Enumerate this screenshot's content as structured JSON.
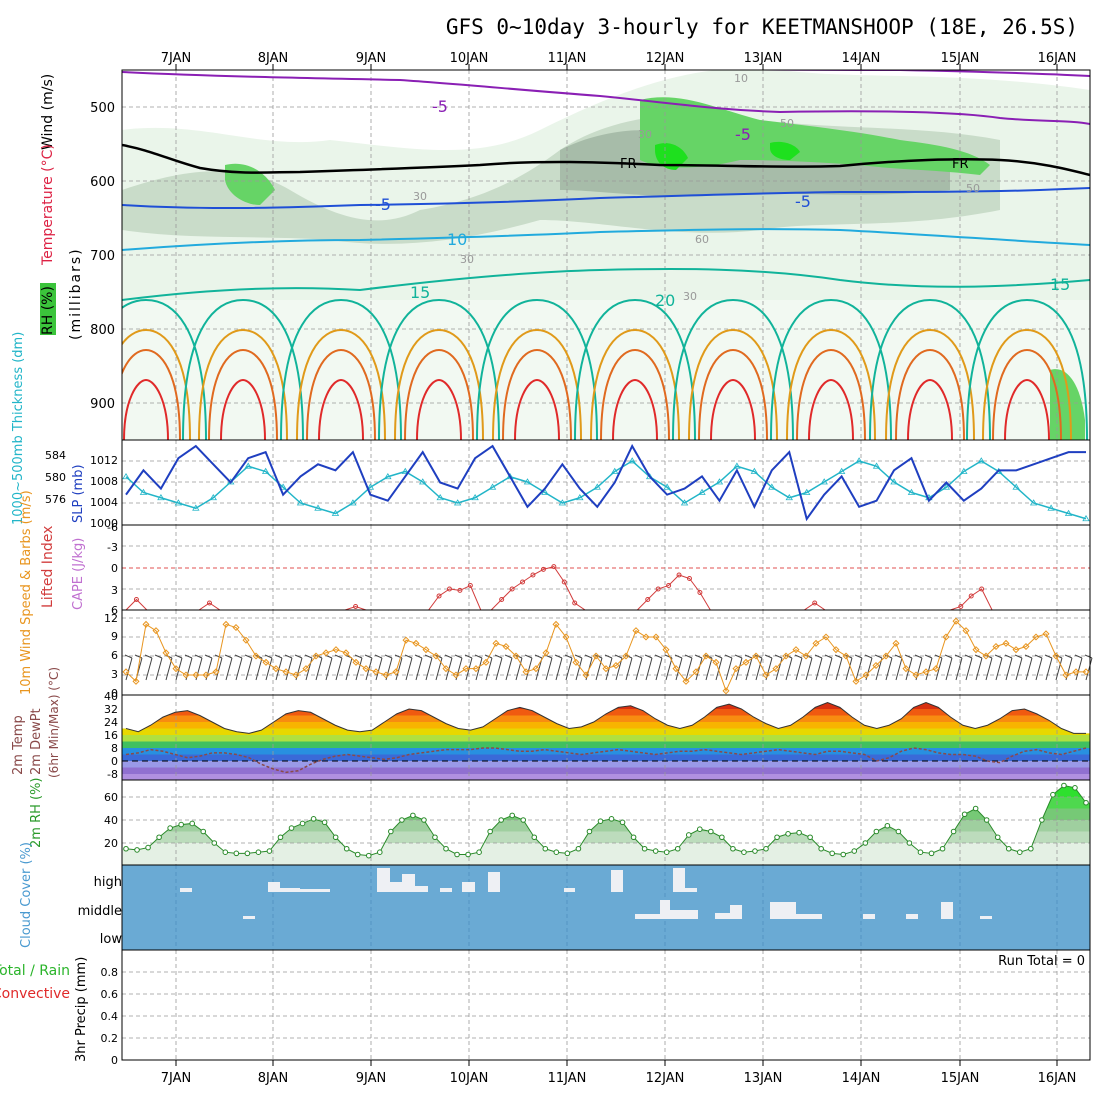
{
  "title": "GFS 0~10day 3-hourly for KEETMANSHOOP (18E, 26.5S)",
  "dates": [
    "7JAN",
    "8JAN",
    "9JAN",
    "10JAN",
    "11JAN",
    "12JAN",
    "13JAN",
    "14JAN",
    "15JAN",
    "16JAN"
  ],
  "colors": {
    "rh_green": "#2ecc40",
    "temp_blue": "#1f4fd6",
    "temp_cyan": "#22aadd",
    "teal": "#11b39a",
    "orange": "#e09a1a",
    "red": "#e02a2a",
    "purple": "#8a1fb4",
    "cloud_bg": "#6aaad4",
    "lifted": "#d23c3c",
    "cape": "#c070d0",
    "wind": "#e8951f",
    "slp": "#1f3fc0",
    "thick": "#22b5c8"
  },
  "chart_data": [
    {
      "type": "line",
      "panel": "upper-air",
      "ylabel_parts": [
        "Wind (m/s)",
        "Temperature (°C)",
        "RH (%)"
      ],
      "ylabel_axis": "(millibars)",
      "y_ticks": [
        500,
        600,
        700,
        800,
        900
      ],
      "ylim": [
        950,
        450
      ],
      "contour_labels": [
        "-5",
        "-5",
        "-5",
        "FR",
        "FR",
        "-5",
        "10",
        "15",
        "20",
        "15",
        "30",
        "30",
        "30",
        "50",
        "60",
        "10",
        "30",
        "50"
      ],
      "series": [
        {
          "name": "-5 upper",
          "values": [
            465,
            470,
            473,
            478,
            480,
            488,
            498,
            505,
            510,
            512
          ]
        },
        {
          "name": "FR",
          "values": [
            570,
            578,
            582,
            585,
            580,
            572,
            568,
            570,
            572,
            575
          ]
        },
        {
          "name": "-5",
          "values": [
            630,
            625,
            615,
            620,
            610,
            605,
            600,
            605,
            600,
            598
          ]
        },
        {
          "name": "10",
          "values": [
            700,
            690,
            688,
            680,
            676,
            670,
            660,
            664,
            668,
            675
          ]
        },
        {
          "name": "15",
          "values": [
            760,
            755,
            748,
            740,
            730,
            720,
            715,
            730,
            740,
            745
          ]
        }
      ]
    },
    {
      "type": "line",
      "panel": "slp-thickness",
      "ylabel": "SLP (mb)",
      "ylabel2": "1000~500mb Thickness (dm)",
      "slp_ticks": [
        1012,
        1008,
        1004,
        1000
      ],
      "thick_ticks": [
        584,
        580,
        576
      ],
      "ylim": [
        1000,
        1014
      ],
      "series": [
        {
          "name": "SLP",
          "values": [
            1005,
            1009,
            1006,
            1011,
            1013,
            1010,
            1007,
            1011,
            1012,
            1005,
            1008,
            1010,
            1009,
            1012,
            1005,
            1004,
            1008,
            1012,
            1007,
            1006,
            1011,
            1013,
            1008,
            1003,
            1006,
            1010,
            1006,
            1003,
            1007,
            1013,
            1008,
            1005,
            1006,
            1008,
            1004,
            1009,
            1003,
            1009,
            1012,
            1001,
            1005,
            1008,
            1003,
            1004,
            1009,
            1011,
            1004,
            1007,
            1004,
            1006,
            1009,
            1009,
            1010,
            1011,
            1012,
            1012
          ]
        },
        {
          "name": "Thickness",
          "values": [
            581,
            578,
            577,
            576,
            575,
            577,
            580,
            583,
            582,
            579,
            576,
            575,
            574,
            576,
            579,
            581,
            582,
            580,
            577,
            576,
            577,
            579,
            581,
            580,
            578,
            576,
            577,
            579,
            582,
            584,
            581,
            579,
            576,
            578,
            580,
            583,
            582,
            579,
            577,
            578,
            580,
            582,
            584,
            583,
            580,
            578,
            577,
            579,
            582,
            584,
            582,
            579,
            576,
            575,
            574,
            573
          ]
        }
      ]
    },
    {
      "type": "line",
      "panel": "cape-lifted",
      "ylabel": "Lifted Index",
      "ylabel2": "CAPE (J/kg)",
      "y_ticks": [
        -6,
        -3,
        0,
        3,
        6
      ],
      "ylim": [
        -6,
        6
      ],
      "series": [
        {
          "name": "Lifted Index",
          "values": [
            6,
            4.5,
            6,
            6,
            6,
            6,
            6,
            6,
            5,
            6,
            6,
            6,
            6,
            6,
            6,
            6,
            6,
            6,
            6,
            6,
            6,
            6,
            5.5,
            6,
            6,
            6,
            6,
            6,
            6,
            6,
            4,
            3,
            3.2,
            2.5,
            6,
            6,
            4.5,
            3,
            2,
            1,
            0.2,
            -0.2,
            2,
            5,
            6,
            6,
            6,
            6,
            6,
            6,
            4.5,
            3,
            2.5,
            1,
            1.5,
            3.5,
            6,
            6,
            6,
            6,
            6,
            6,
            6,
            6,
            6,
            6,
            5,
            6,
            6,
            6,
            6,
            6,
            6,
            6,
            6,
            6,
            6,
            6,
            6,
            6,
            5.5,
            4,
            3,
            6,
            6,
            6,
            6,
            6,
            6,
            6,
            6,
            6,
            6
          ]
        }
      ]
    },
    {
      "type": "line",
      "panel": "wind-10m",
      "ylabel": "10m Wind Speed & Barbs (m/s)",
      "y_ticks": [
        0,
        3,
        6,
        9,
        12
      ],
      "ylim": [
        0,
        12.5
      ],
      "series": [
        {
          "name": "Wind speed",
          "values": [
            3.5,
            2,
            11,
            10,
            6.5,
            4,
            3,
            3,
            3,
            3.5,
            11,
            10.5,
            8.5,
            6,
            5,
            4,
            3.5,
            3,
            4,
            6,
            6.5,
            7,
            6.5,
            5,
            4,
            3.5,
            3,
            3.5,
            8.5,
            8,
            7,
            6,
            4,
            3,
            4,
            4,
            5,
            8,
            7.5,
            6,
            3.5,
            4,
            6.5,
            11,
            9,
            5,
            3,
            6,
            4,
            4.5,
            6,
            10,
            9,
            9,
            7,
            4,
            2,
            3.5,
            6,
            5,
            0.5,
            4,
            5,
            6,
            3,
            4,
            6,
            7,
            6,
            8,
            9,
            7,
            6,
            2,
            3,
            4.5,
            6,
            8,
            4,
            3,
            3.5,
            4,
            9,
            11.5,
            10,
            7,
            6,
            7.5,
            8,
            7,
            7.5,
            9,
            9.5,
            6,
            3,
            3.5,
            3.5
          ]
        }
      ]
    },
    {
      "type": "area",
      "panel": "temp-2m",
      "ylabel": "2m Temp",
      "ylabel2": "2m DewPt",
      "ylabel3": "(6hr Min/Max) (°C)",
      "y_ticks": [
        -8,
        0,
        8,
        16,
        24,
        32,
        40
      ],
      "ylim": [
        -12,
        42
      ],
      "series": [
        {
          "name": "2m Temp",
          "values": [
            20,
            18,
            22,
            27,
            30,
            31,
            28,
            24,
            20,
            18,
            17,
            19,
            24,
            29,
            31,
            30,
            26,
            22,
            19,
            18,
            19,
            24,
            29,
            32,
            31,
            27,
            23,
            20,
            19,
            21,
            26,
            31,
            33,
            31,
            27,
            23,
            20,
            21,
            24,
            29,
            33,
            34,
            31,
            26,
            22,
            20,
            22,
            27,
            33,
            35,
            32,
            27,
            23,
            20,
            22,
            27,
            33,
            36,
            33,
            27,
            22,
            20,
            22,
            26,
            33,
            36,
            33,
            27,
            22,
            20,
            22,
            26,
            31,
            32,
            29,
            25,
            20,
            17,
            17
          ]
        },
        {
          "name": "2m DewPt",
          "values": [
            4,
            5,
            7,
            6,
            4,
            2,
            3,
            5,
            5,
            4,
            2,
            -2,
            -5,
            -7,
            -6,
            -2,
            1,
            3,
            4,
            3,
            2,
            1,
            2,
            4,
            5,
            6,
            7,
            7,
            7,
            8,
            8,
            7,
            6,
            6,
            7,
            6,
            5,
            4,
            5,
            6,
            7,
            6,
            5,
            4,
            5,
            6,
            6,
            7,
            6,
            5,
            4,
            5,
            6,
            7,
            6,
            5,
            4,
            6,
            6,
            5,
            4,
            0,
            2,
            6,
            8,
            7,
            5,
            4,
            4,
            3,
            0,
            -1,
            3,
            6,
            7,
            5,
            4,
            6,
            8
          ]
        }
      ]
    },
    {
      "type": "area",
      "panel": "rh-2m",
      "ylabel": "2m RH (%)",
      "y_ticks": [
        20,
        40,
        60
      ],
      "ylim": [
        0,
        75
      ],
      "series": [
        {
          "name": "2m RH",
          "values": [
            15,
            14,
            16,
            25,
            33,
            36,
            37,
            30,
            20,
            12,
            11,
            11,
            12,
            13,
            25,
            33,
            37,
            41,
            38,
            25,
            15,
            10,
            9,
            12,
            30,
            40,
            44,
            40,
            25,
            15,
            10,
            10,
            12,
            30,
            40,
            44,
            40,
            25,
            15,
            12,
            11,
            15,
            30,
            39,
            41,
            38,
            25,
            15,
            13,
            12,
            15,
            27,
            32,
            30,
            25,
            15,
            12,
            13,
            15,
            25,
            28,
            29,
            25,
            15,
            11,
            10,
            13,
            20,
            30,
            35,
            30,
            20,
            12,
            11,
            15,
            30,
            45,
            50,
            40,
            25,
            15,
            12,
            15,
            40,
            62,
            70,
            68,
            55
          ]
        }
      ]
    },
    {
      "type": "bar",
      "panel": "cloud-cover",
      "ylabel": "Cloud Cover (%)",
      "levels": [
        "high",
        "middle",
        "low"
      ]
    },
    {
      "type": "bar",
      "panel": "precip",
      "ylabel": "3hr Precip (mm)",
      "ylabel2": "Total / Rain",
      "ylabel3": "Convective",
      "y_ticks": [
        0,
        0.2,
        0.4,
        0.6,
        0.8
      ],
      "ylim": [
        0,
        1
      ],
      "run_total": "Run Total = 0"
    }
  ]
}
